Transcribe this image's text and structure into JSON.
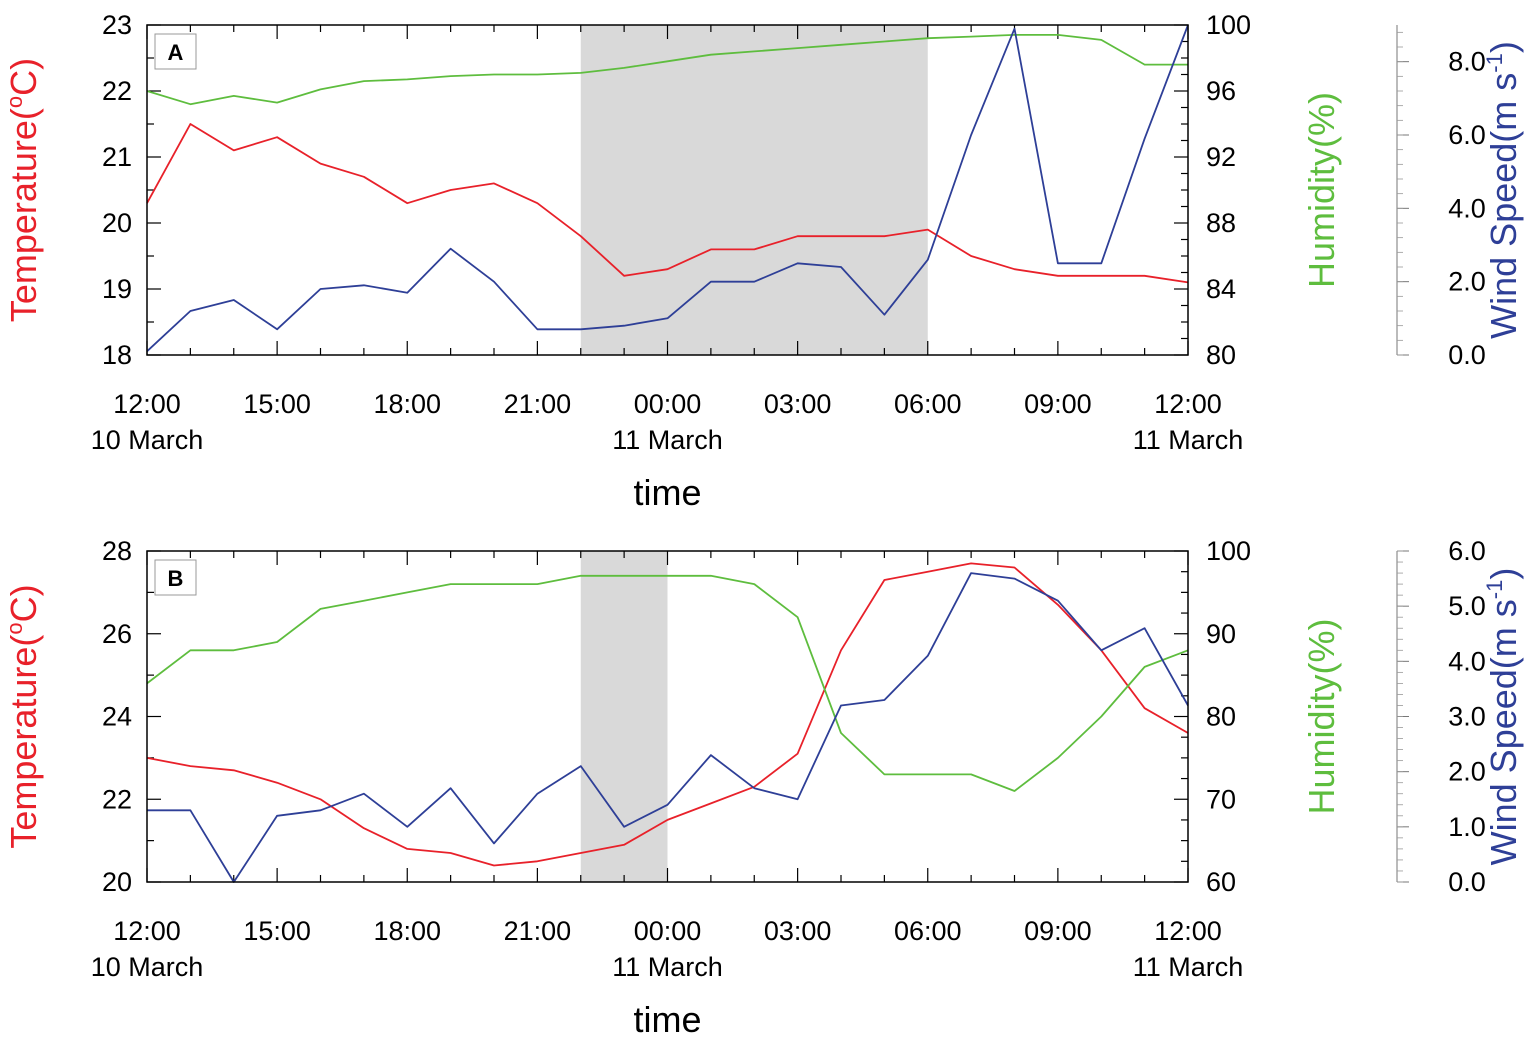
{
  "chart_data": [
    {
      "panel_label": "A",
      "type": "line",
      "xlabel": "time",
      "x": [
        "12:00",
        "13:00",
        "14:00",
        "15:00",
        "16:00",
        "17:00",
        "18:00",
        "19:00",
        "20:00",
        "21:00",
        "22:00",
        "23:00",
        "00:00",
        "01:00",
        "02:00",
        "03:00",
        "04:00",
        "05:00",
        "06:00",
        "07:00",
        "08:00",
        "09:00",
        "10:00",
        "11:00",
        "12:00"
      ],
      "x_ticks": [
        {
          "index": 0,
          "time": "12:00",
          "date": "10 March"
        },
        {
          "index": 3,
          "time": "15:00",
          "date": ""
        },
        {
          "index": 6,
          "time": "18:00",
          "date": ""
        },
        {
          "index": 9,
          "time": "21:00",
          "date": ""
        },
        {
          "index": 12,
          "time": "00:00",
          "date": "11 March"
        },
        {
          "index": 15,
          "time": "03:00",
          "date": ""
        },
        {
          "index": 18,
          "time": "06:00",
          "date": ""
        },
        {
          "index": 21,
          "time": "09:00",
          "date": ""
        },
        {
          "index": 24,
          "time": "12:00",
          "date": "11 March"
        }
      ],
      "shaded_range": [
        10,
        18
      ],
      "axes": {
        "temperature": {
          "label": "Temperature(",
          "label_sup": "o",
          "label_end": "C)",
          "color": "#e8212a",
          "ylim": [
            18,
            23
          ],
          "ticks": [
            "18",
            "19",
            "20",
            "21",
            "22",
            "23"
          ]
        },
        "humidity": {
          "label": "Humidity(%)",
          "color": "#5ebd3e",
          "ylim": [
            80,
            100
          ],
          "ticks": [
            "80",
            "84",
            "88",
            "92",
            "96",
            "100"
          ]
        },
        "wind": {
          "label": "Wind Speed(m s",
          "label_sup": "-1",
          "label_end": ")",
          "color": "#2e3f97",
          "ylim": [
            0,
            9
          ],
          "ticks": [
            "0.0",
            "2.0",
            "4.0",
            "6.0",
            "8.0"
          ]
        }
      },
      "series": [
        {
          "name": "Temperature",
          "axis": "temperature",
          "color": "#e8212a",
          "values": [
            20.3,
            21.5,
            21.1,
            21.3,
            20.9,
            20.7,
            20.3,
            20.5,
            20.6,
            20.3,
            19.8,
            19.2,
            19.3,
            19.6,
            19.6,
            19.8,
            19.8,
            19.8,
            19.9,
            19.5,
            19.3,
            19.2,
            19.2,
            19.2,
            19.1
          ]
        },
        {
          "name": "Humidity",
          "axis": "humidity",
          "color": "#5ebd3e",
          "values": [
            96.0,
            95.2,
            95.7,
            95.3,
            96.1,
            96.6,
            96.7,
            96.9,
            97.0,
            97.0,
            97.1,
            97.4,
            97.8,
            98.2,
            98.4,
            98.6,
            98.8,
            99.0,
            99.2,
            99.3,
            99.4,
            99.4,
            99.1,
            97.6,
            97.6
          ]
        },
        {
          "name": "Wind Speed",
          "axis": "wind",
          "color": "#2e3f97",
          "values": [
            0.1,
            1.2,
            1.5,
            0.7,
            1.8,
            1.9,
            1.7,
            2.9,
            2.0,
            0.7,
            0.7,
            0.8,
            1.0,
            2.0,
            2.0,
            2.5,
            2.4,
            1.1,
            2.6,
            6.0,
            8.9,
            2.5,
            2.5,
            5.9,
            9.0
          ]
        }
      ]
    },
    {
      "panel_label": "B",
      "type": "line",
      "xlabel": "time",
      "x": [
        "12:00",
        "13:00",
        "14:00",
        "15:00",
        "16:00",
        "17:00",
        "18:00",
        "19:00",
        "20:00",
        "21:00",
        "22:00",
        "23:00",
        "00:00",
        "01:00",
        "02:00",
        "03:00",
        "04:00",
        "05:00",
        "06:00",
        "07:00",
        "08:00",
        "09:00",
        "10:00",
        "11:00",
        "12:00"
      ],
      "x_ticks": [
        {
          "index": 0,
          "time": "12:00",
          "date": "10 March"
        },
        {
          "index": 3,
          "time": "15:00",
          "date": ""
        },
        {
          "index": 6,
          "time": "18:00",
          "date": ""
        },
        {
          "index": 9,
          "time": "21:00",
          "date": ""
        },
        {
          "index": 12,
          "time": "00:00",
          "date": "11 March"
        },
        {
          "index": 15,
          "time": "03:00",
          "date": ""
        },
        {
          "index": 18,
          "time": "06:00",
          "date": ""
        },
        {
          "index": 21,
          "time": "09:00",
          "date": ""
        },
        {
          "index": 24,
          "time": "12:00",
          "date": "11 March"
        }
      ],
      "shaded_range": [
        10,
        12
      ],
      "axes": {
        "temperature": {
          "label": "Temperature(",
          "label_sup": "o",
          "label_end": "C)",
          "color": "#e8212a",
          "ylim": [
            20,
            28
          ],
          "ticks": [
            "20",
            "22",
            "24",
            "26",
            "28"
          ]
        },
        "humidity": {
          "label": "Humidity(%)",
          "color": "#5ebd3e",
          "ylim": [
            60,
            100
          ],
          "ticks": [
            "60",
            "70",
            "80",
            "90",
            "100"
          ]
        },
        "wind": {
          "label": "Wind Speed(m s",
          "label_sup": "-1",
          "label_end": ")",
          "color": "#2e3f97",
          "ylim": [
            0,
            6
          ],
          "ticks": [
            "0.0",
            "1.0",
            "2.0",
            "3.0",
            "4.0",
            "5.0",
            "6.0"
          ]
        }
      },
      "series": [
        {
          "name": "Temperature",
          "axis": "temperature",
          "color": "#e8212a",
          "values": [
            23.0,
            22.8,
            22.7,
            22.4,
            22.0,
            21.3,
            20.8,
            20.7,
            20.4,
            20.5,
            20.7,
            20.9,
            21.5,
            21.9,
            22.3,
            23.1,
            25.6,
            27.3,
            27.5,
            27.7,
            27.6,
            26.7,
            25.6,
            24.2,
            23.6
          ]
        },
        {
          "name": "Humidity",
          "axis": "humidity",
          "color": "#5ebd3e",
          "values": [
            84.0,
            88.0,
            88.0,
            89.0,
            93.0,
            94.0,
            95.0,
            96.0,
            96.0,
            96.0,
            97.0,
            97.0,
            97.0,
            97.0,
            96.0,
            92.0,
            78.0,
            73.0,
            73.0,
            73.0,
            71.0,
            75.0,
            80.0,
            86.0,
            88.0
          ]
        },
        {
          "name": "Wind Speed",
          "axis": "wind",
          "color": "#2e3f97",
          "values": [
            1.3,
            1.3,
            0.0,
            1.2,
            1.3,
            1.6,
            1.0,
            1.7,
            0.7,
            1.6,
            2.1,
            1.0,
            1.4,
            2.3,
            1.7,
            1.5,
            3.2,
            3.3,
            4.1,
            5.6,
            5.5,
            5.1,
            4.2,
            4.6,
            3.2
          ]
        }
      ]
    }
  ]
}
